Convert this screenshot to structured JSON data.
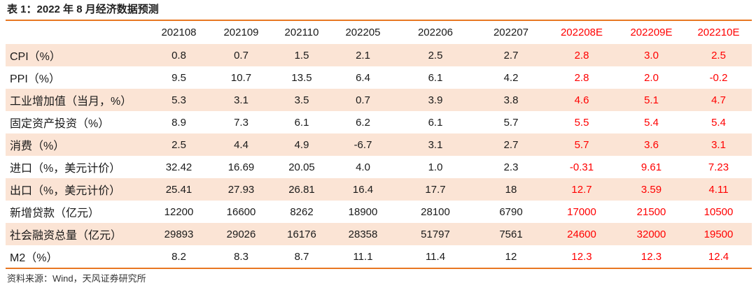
{
  "title": "表 1：2022 年 8 月经济数据预测",
  "table": {
    "headers": [
      "",
      "202108",
      "202109",
      "202110",
      "202205",
      "202206",
      "202207",
      "202208E",
      "202209E",
      "202210E"
    ],
    "forecast_columns": [
      7,
      8,
      9
    ],
    "rows": [
      {
        "label": "CPI（%）",
        "values": [
          "0.8",
          "0.7",
          "1.5",
          "2.1",
          "2.5",
          "2.7",
          "2.8",
          "3.0",
          "2.5"
        ]
      },
      {
        "label": "PPI（%）",
        "values": [
          "9.5",
          "10.7",
          "13.5",
          "6.4",
          "6.1",
          "4.2",
          "2.8",
          "2.0",
          "-0.2"
        ]
      },
      {
        "label": "工业增加值（当月，%）",
        "values": [
          "5.3",
          "3.1",
          "3.5",
          "0.7",
          "3.9",
          "3.8",
          "4.6",
          "5.1",
          "4.7"
        ]
      },
      {
        "label": "固定资产投资（%）",
        "values": [
          "8.9",
          "7.3",
          "6.1",
          "6.2",
          "6.1",
          "5.7",
          "5.5",
          "5.4",
          "5.4"
        ]
      },
      {
        "label": "消费（%）",
        "values": [
          "2.5",
          "4.4",
          "4.9",
          "-6.7",
          "3.1",
          "2.7",
          "5.7",
          "3.6",
          "3.1"
        ]
      },
      {
        "label": "进口（%，美元计价）",
        "values": [
          "32.42",
          "16.69",
          "20.05",
          "4.0",
          "1.0",
          "2.3",
          "-0.31",
          "9.61",
          "7.23"
        ]
      },
      {
        "label": "出口（%，美元计价）",
        "values": [
          "25.41",
          "27.93",
          "26.81",
          "16.4",
          "17.7",
          "18",
          "12.7",
          "3.59",
          "4.11"
        ]
      },
      {
        "label": "新增贷款（亿元）",
        "values": [
          "12200",
          "16600",
          "8262",
          "18900",
          "28100",
          "6790",
          "17000",
          "21500",
          "10500"
        ]
      },
      {
        "label": "社会融资总量（亿元）",
        "values": [
          "29893",
          "29026",
          "16176",
          "28358",
          "51797",
          "7561",
          "24600",
          "32000",
          "19500"
        ]
      },
      {
        "label": "M2（%）",
        "values": [
          "8.2",
          "8.3",
          "8.7",
          "11.1",
          "11.4",
          "12",
          "12.3",
          "12.3",
          "12.4"
        ]
      }
    ]
  },
  "source": "资料来源：Wind，天风证券研究所",
  "colors": {
    "accent_rule": "#e87722",
    "row_shade": "#fbe4d5",
    "forecast_text": "#ff0000"
  }
}
